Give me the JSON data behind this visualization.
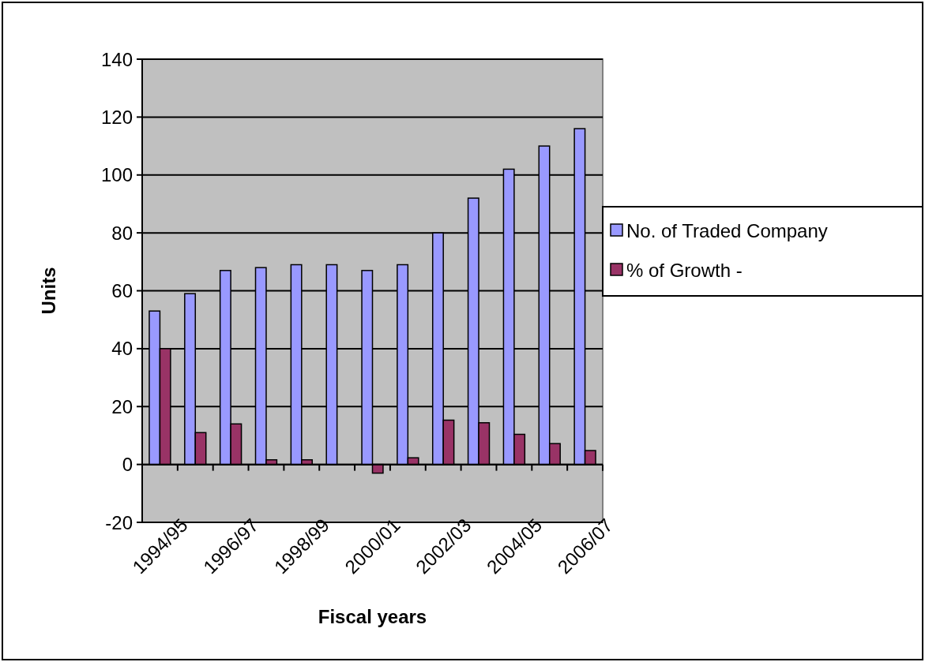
{
  "chart_data": {
    "type": "bar",
    "xlabel": "Fiscal years",
    "ylabel": "Units",
    "categories": [
      "1994/95",
      null,
      "1996/97",
      null,
      "1998/99",
      null,
      "2000/01",
      null,
      "2002/03",
      null,
      "2004/05",
      null,
      "2006/07"
    ],
    "series": [
      {
        "name": "No. of Traded Company",
        "color": "#9999ff",
        "values": [
          53,
          59,
          67,
          68,
          69,
          69,
          67,
          69,
          80,
          92,
          102,
          110,
          116
        ]
      },
      {
        "name": "% of Growth -",
        "color": "#993366",
        "values": [
          40,
          11,
          14,
          1.6,
          1.6,
          0,
          -3,
          2.3,
          15.3,
          14.4,
          10.4,
          7.2,
          4.8
        ]
      }
    ],
    "ylim": [
      -20,
      140
    ],
    "yticks": [
      -20,
      0,
      20,
      40,
      60,
      80,
      100,
      120,
      140
    ],
    "grid": "y",
    "legend": "right"
  }
}
